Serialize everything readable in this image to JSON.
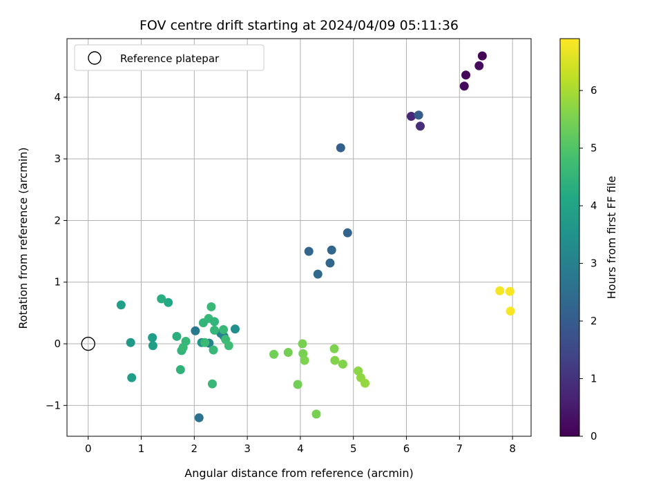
{
  "chart_data": {
    "type": "scatter",
    "title": "FOV centre drift starting at 2024/04/09 05:11:36",
    "xlabel": "Angular distance from reference (arcmin)",
    "ylabel": "Rotation from reference (arcmin)",
    "xlim": [
      -0.4,
      8.35
    ],
    "ylim": [
      -1.5,
      4.95
    ],
    "xticks": [
      0,
      1,
      2,
      3,
      4,
      5,
      6,
      7,
      8
    ],
    "yticks": [
      -1,
      0,
      1,
      2,
      3,
      4
    ],
    "grid": true,
    "legend": {
      "placement": "upper-left",
      "entries": [
        "Reference platepar"
      ]
    },
    "reference_point": {
      "x": 0,
      "y": 0,
      "label": "Reference platepar"
    },
    "colorbar": {
      "label": "Hours from first FF file",
      "colormap": "viridis",
      "range": [
        0,
        6.9
      ],
      "ticks": [
        0,
        1,
        2,
        3,
        4,
        5,
        6
      ]
    },
    "series": [
      {
        "points": [
          {
            "x": 7.43,
            "y": 4.67,
            "c": 0.05
          },
          {
            "x": 7.12,
            "y": 4.36,
            "c": 0.1
          },
          {
            "x": 7.37,
            "y": 4.51,
            "c": 0.2
          },
          {
            "x": 7.09,
            "y": 4.18,
            "c": 0.15
          },
          {
            "x": 6.09,
            "y": 3.69,
            "c": 0.75
          },
          {
            "x": 6.26,
            "y": 3.53,
            "c": 0.9
          },
          {
            "x": 6.23,
            "y": 3.71,
            "c": 2.0
          },
          {
            "x": 4.76,
            "y": 3.18,
            "c": 2.1
          },
          {
            "x": 4.89,
            "y": 1.8,
            "c": 2.2
          },
          {
            "x": 4.16,
            "y": 1.5,
            "c": 2.25
          },
          {
            "x": 4.59,
            "y": 1.52,
            "c": 2.3
          },
          {
            "x": 4.56,
            "y": 1.31,
            "c": 2.3
          },
          {
            "x": 4.33,
            "y": 1.13,
            "c": 2.35
          },
          {
            "x": 2.09,
            "y": -1.2,
            "c": 2.6
          },
          {
            "x": 2.02,
            "y": 0.21,
            "c": 2.8
          },
          {
            "x": 2.28,
            "y": 0.01,
            "c": 2.95
          },
          {
            "x": 2.5,
            "y": 0.17,
            "c": 3.0
          },
          {
            "x": 2.56,
            "y": 0.12,
            "c": 3.1
          },
          {
            "x": 2.77,
            "y": 0.24,
            "c": 3.4
          },
          {
            "x": 2.14,
            "y": 0.02,
            "c": 3.55
          },
          {
            "x": 0.8,
            "y": 0.02,
            "c": 3.7
          },
          {
            "x": 0.82,
            "y": -0.55,
            "c": 3.8
          },
          {
            "x": 0.62,
            "y": 0.63,
            "c": 3.9
          },
          {
            "x": 1.21,
            "y": 0.1,
            "c": 3.8
          },
          {
            "x": 1.22,
            "y": -0.03,
            "c": 3.85
          },
          {
            "x": 1.51,
            "y": 0.67,
            "c": 4.15
          },
          {
            "x": 1.38,
            "y": 0.73,
            "c": 4.3
          },
          {
            "x": 1.67,
            "y": 0.12,
            "c": 4.35
          },
          {
            "x": 1.74,
            "y": -0.42,
            "c": 4.45
          },
          {
            "x": 1.76,
            "y": -0.11,
            "c": 4.5
          },
          {
            "x": 1.84,
            "y": 0.04,
            "c": 4.55
          },
          {
            "x": 1.79,
            "y": -0.06,
            "c": 4.6
          },
          {
            "x": 2.17,
            "y": 0.34,
            "c": 4.5
          },
          {
            "x": 2.27,
            "y": 0.41,
            "c": 4.55
          },
          {
            "x": 2.32,
            "y": 0.6,
            "c": 4.6
          },
          {
            "x": 2.38,
            "y": 0.36,
            "c": 4.5
          },
          {
            "x": 2.38,
            "y": 0.22,
            "c": 4.55
          },
          {
            "x": 2.55,
            "y": 0.23,
            "c": 4.6
          },
          {
            "x": 2.59,
            "y": 0.07,
            "c": 4.65
          },
          {
            "x": 2.65,
            "y": -0.03,
            "c": 4.7
          },
          {
            "x": 2.36,
            "y": -0.1,
            "c": 4.6
          },
          {
            "x": 2.34,
            "y": -0.65,
            "c": 4.6
          },
          {
            "x": 2.2,
            "y": 0.02,
            "c": 4.65
          },
          {
            "x": 3.5,
            "y": -0.17,
            "c": 5.4
          },
          {
            "x": 3.77,
            "y": -0.14,
            "c": 5.45
          },
          {
            "x": 3.95,
            "y": -0.66,
            "c": 5.4
          },
          {
            "x": 4.04,
            "y": 0.0,
            "c": 5.5
          },
          {
            "x": 4.05,
            "y": -0.16,
            "c": 5.5
          },
          {
            "x": 4.08,
            "y": -0.27,
            "c": 5.55
          },
          {
            "x": 4.3,
            "y": -1.14,
            "c": 5.5
          },
          {
            "x": 4.64,
            "y": -0.08,
            "c": 5.55
          },
          {
            "x": 4.65,
            "y": -0.27,
            "c": 5.6
          },
          {
            "x": 4.8,
            "y": -0.33,
            "c": 5.6
          },
          {
            "x": 5.09,
            "y": -0.44,
            "c": 5.7
          },
          {
            "x": 5.14,
            "y": -0.55,
            "c": 5.75
          },
          {
            "x": 5.22,
            "y": -0.64,
            "c": 5.8
          },
          {
            "x": 7.76,
            "y": 0.86,
            "c": 6.8
          },
          {
            "x": 7.95,
            "y": 0.85,
            "c": 6.85
          },
          {
            "x": 7.96,
            "y": 0.53,
            "c": 6.85
          }
        ]
      }
    ]
  }
}
